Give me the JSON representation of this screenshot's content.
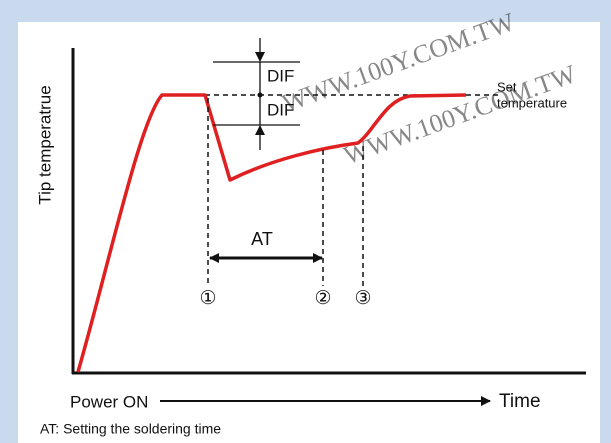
{
  "diagram": {
    "watermark": "WWW.100Y.COM.TW",
    "y_axis_label": "Tip temperatrue",
    "dif_upper": "DIF",
    "dif_lower": "DIF",
    "set_temperature": [
      "Set",
      "temperature"
    ],
    "at_label": "AT",
    "markers": [
      "①",
      "②",
      "③"
    ],
    "power_on": "Power ON",
    "time_label": "Time",
    "footnote": "AT: Setting the soldering time"
  }
}
